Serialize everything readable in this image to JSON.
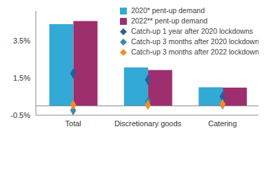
{
  "chart_data": {
    "type": "bar",
    "categories": [
      "Total",
      "Discretionary goods",
      "Catering"
    ],
    "series": [
      {
        "name": "2020* pent-up demand",
        "type": "bar",
        "color": "#33a9d6",
        "values": [
          4.4,
          2.07,
          1.0
        ]
      },
      {
        "name": "2022** pent-up demand",
        "type": "bar",
        "color": "#9e2f6e",
        "values": [
          4.56,
          1.93,
          0.98
        ]
      },
      {
        "name": "Catch-up 1 year after 2020 lockdowns",
        "type": "scatter",
        "marker": "diamond",
        "color": "#2b5c9e",
        "values": [
          1.74,
          1.4,
          0.5
        ]
      },
      {
        "name": "Catch-up 3 months after 2020 lockdowns",
        "type": "scatter",
        "marker": "diamond",
        "color": "#3b88a6",
        "values": [
          -0.24,
          0.24,
          0.07
        ]
      },
      {
        "name": "Catch-up 3 months after 2022 lockdowns",
        "type": "scatter",
        "marker": "diamond",
        "color": "#f28c28",
        "values": [
          0.05,
          0.05,
          0.1
        ]
      }
    ],
    "ylim": [
      -0.5,
      5.1
    ],
    "yticks": [
      {
        "value": -0.5,
        "label": "-0.5%"
      },
      {
        "value": 1.5,
        "label": "1.5%"
      },
      {
        "value": 3.5,
        "label": "3.5%"
      }
    ],
    "grid": false,
    "legend": "top-right"
  }
}
